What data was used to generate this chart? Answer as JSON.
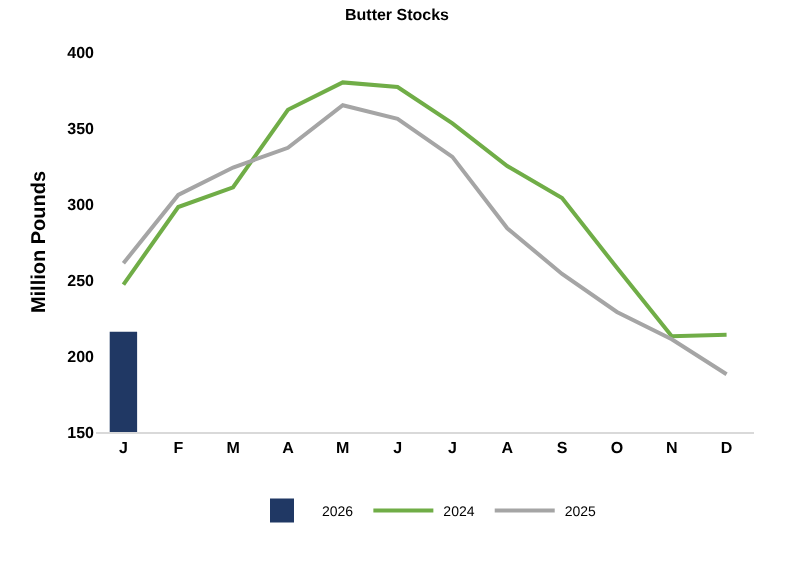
{
  "chart_data": {
    "type": "line",
    "title": "Butter Stocks",
    "ylabel": "Million Pounds",
    "categories": [
      "J",
      "F",
      "M",
      "A",
      "M",
      "J",
      "J",
      "A",
      "S",
      "O",
      "N",
      "D"
    ],
    "series": [
      {
        "name": "2026",
        "type": "bar",
        "color": "#203864",
        "values": [
          216,
          null,
          null,
          null,
          null,
          null,
          null,
          null,
          null,
          null,
          null,
          null
        ]
      },
      {
        "name": "2024",
        "color": "#70ad47",
        "values": [
          247,
          298,
          311,
          362,
          380,
          377,
          353,
          325,
          304,
          258,
          213,
          214
        ]
      },
      {
        "name": "2025",
        "color": "#a5a5a5",
        "values": [
          261,
          306,
          324,
          337,
          365,
          356,
          331,
          284,
          254,
          229,
          211,
          188
        ]
      }
    ],
    "ylim": [
      150,
      400
    ],
    "yticks": [
      150,
      200,
      250,
      300,
      350,
      400
    ],
    "legend": "bottom",
    "marker": "none",
    "line_style": "solid"
  }
}
